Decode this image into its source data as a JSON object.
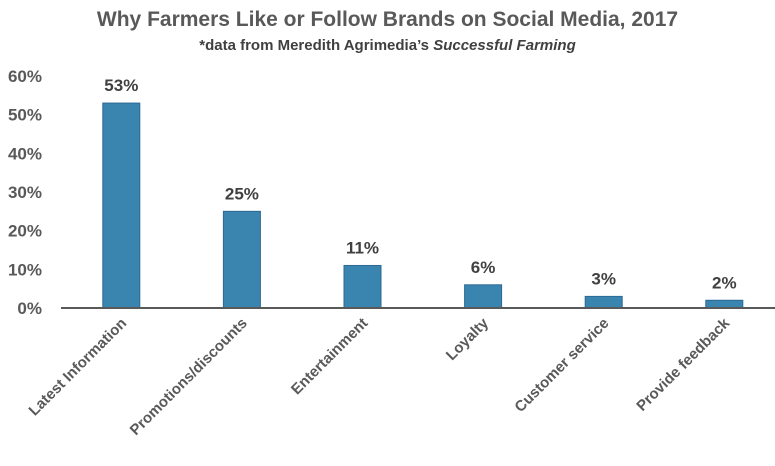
{
  "chart_data": {
    "type": "bar",
    "title": "Why Farmers Like or Follow Brands on Social Media, 2017",
    "subtitle_prefix": "*data from Meredith Agrimedia’s ",
    "subtitle_italic": "Successful Farming",
    "categories": [
      "Latest Information",
      "Promotions/discounts",
      "Entertainment",
      "Loyalty",
      "Customer service",
      "Provide feedback"
    ],
    "values": [
      53,
      25,
      11,
      6,
      3,
      2
    ],
    "data_labels": [
      "53%",
      "25%",
      "11%",
      "6%",
      "3%",
      "2%"
    ],
    "yticks": [
      "0%",
      "10%",
      "20%",
      "30%",
      "40%",
      "50%",
      "60%"
    ],
    "ylim": [
      0,
      60
    ],
    "grid": false,
    "bar_color": "#3A84B0",
    "bar_border": "#2B6A94"
  }
}
